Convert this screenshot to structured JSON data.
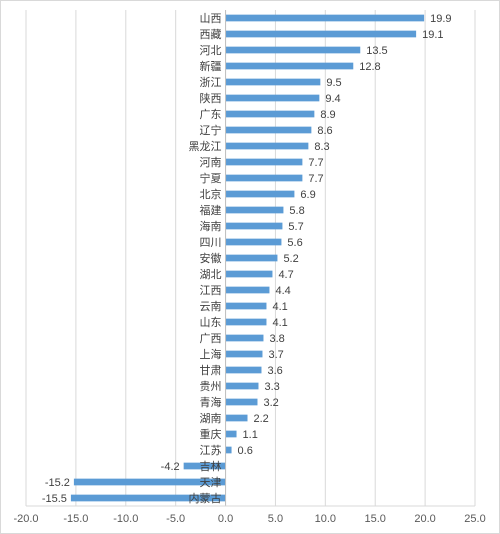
{
  "chart_data": {
    "type": "bar",
    "orientation": "horizontal",
    "title": "",
    "xlabel": "",
    "ylabel": "",
    "xlim": [
      -20,
      25
    ],
    "x_ticks": [
      "-20.0",
      "-15.0",
      "-10.0",
      "-5.0",
      "0.0",
      "5.0",
      "10.0",
      "15.0",
      "20.0",
      "25.0"
    ],
    "grid": true,
    "legend": "none",
    "bar_color": "#5b9bd5",
    "categories": [
      "山西",
      "西藏",
      "河北",
      "新疆",
      "浙江",
      "陕西",
      "广东",
      "辽宁",
      "黑龙江",
      "河南",
      "宁夏",
      "北京",
      "福建",
      "海南",
      "四川",
      "安徽",
      "湖北",
      "江西",
      "云南",
      "山东",
      "广西",
      "上海",
      "甘肃",
      "贵州",
      "青海",
      "湖南",
      "重庆",
      "江苏",
      "吉林",
      "天津",
      "内蒙古"
    ],
    "values": [
      19.9,
      19.1,
      13.5,
      12.8,
      9.5,
      9.4,
      8.9,
      8.6,
      8.3,
      7.7,
      7.7,
      6.9,
      5.8,
      5.7,
      5.6,
      5.2,
      4.7,
      4.4,
      4.1,
      4.1,
      3.8,
      3.7,
      3.6,
      3.3,
      3.2,
      2.2,
      1.1,
      0.6,
      -4.2,
      -15.2,
      -15.5
    ],
    "value_labels": [
      "19.9",
      "19.1",
      "13.5",
      "12.8",
      "9.5",
      "9.4",
      "8.9",
      "8.6",
      "8.3",
      "7.7",
      "7.7",
      "6.9",
      "5.8",
      "5.7",
      "5.6",
      "5.2",
      "4.7",
      "4.4",
      "4.1",
      "4.1",
      "3.8",
      "3.7",
      "3.6",
      "3.3",
      "3.2",
      "2.2",
      "1.1",
      "0.6",
      "-4.2",
      "-15.2",
      "-15.5"
    ]
  }
}
